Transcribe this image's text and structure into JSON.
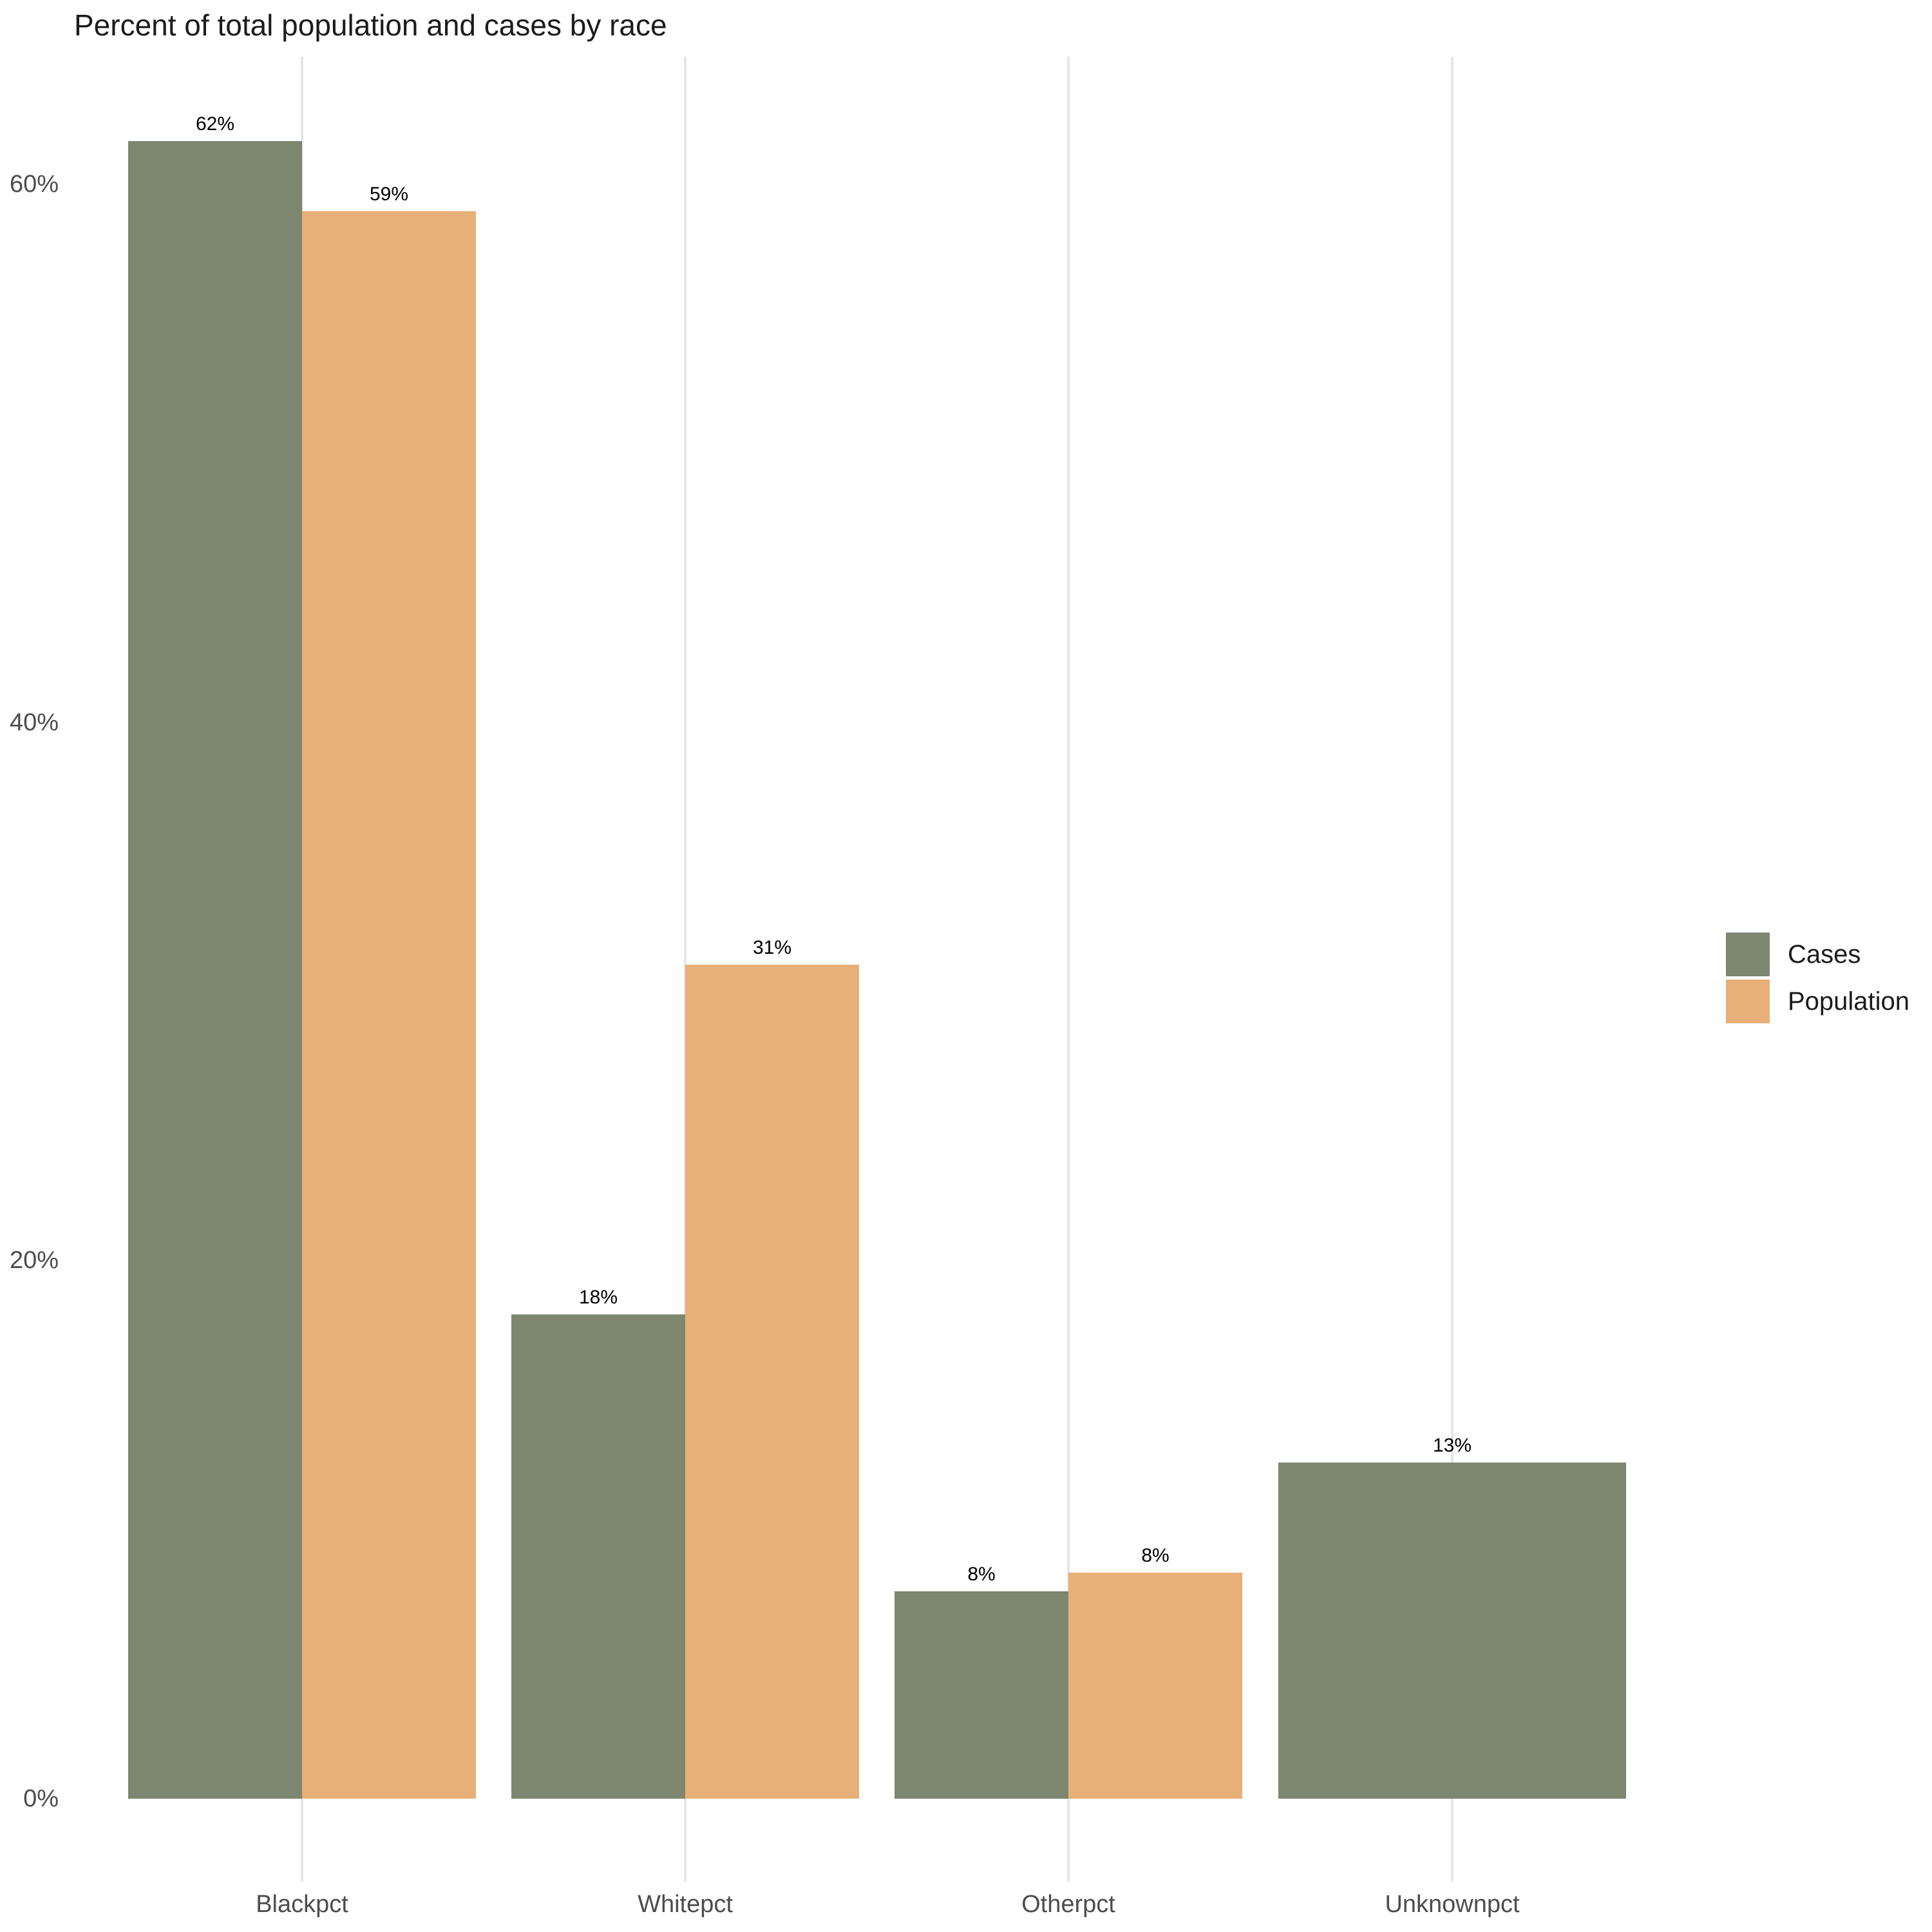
{
  "chart_data": {
    "type": "bar",
    "title": "Percent of total population and cases by race",
    "categories": [
      "Blackpct",
      "Whitepct",
      "Otherpct",
      "Unknownpct"
    ],
    "series": [
      {
        "name": "Cases",
        "color": "#7d8770",
        "values": [
          61.6,
          18,
          7.7,
          12.5
        ],
        "labels": [
          "62%",
          "18%",
          "8%",
          "13%"
        ]
      },
      {
        "name": "Population",
        "color": "#e6b078",
        "values": [
          59,
          31,
          8.4,
          null
        ],
        "labels": [
          "59%",
          "31%",
          "8%",
          null
        ]
      }
    ],
    "xlabel": "",
    "ylabel": "",
    "ylim": [
      0,
      64.7
    ],
    "yticks": [
      {
        "value": 0,
        "label": "0%"
      },
      {
        "value": 20,
        "label": "20%"
      },
      {
        "value": 40,
        "label": "40%"
      },
      {
        "value": 60,
        "label": "60%"
      }
    ],
    "grid": "vertical gridlines at category centers only, no horizontal gridlines, no axis lines",
    "legend_position": "center-right",
    "colors": {
      "cases": "#7d8770",
      "population": "#e6b078",
      "gridline": "#e6e6e6",
      "axis_text": "#4d4d4d",
      "title_text": "#1c1c1c",
      "value_label_text": "#000000",
      "background": "#ffffff"
    }
  }
}
